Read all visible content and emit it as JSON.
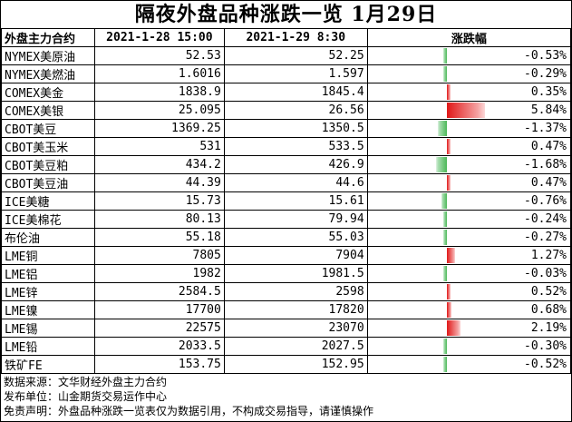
{
  "title": "隔夜外盘品种涨跌一览 1月29日",
  "headers": [
    "外盘主力合约",
    "2021-1-28 15:00",
    "2021-1-29 8:30",
    "涨跌幅"
  ],
  "rows": [
    {
      "name": "NYMEX美原油",
      "prev": "52.53",
      "curr": "52.25",
      "change": "-0.53%",
      "change_value": -0.53
    },
    {
      "name": "NYMEX美燃油",
      "prev": "1.6016",
      "curr": "1.597",
      "change": "-0.29%",
      "change_value": -0.29
    },
    {
      "name": "COMEX美金",
      "prev": "1838.9",
      "curr": "1845.4",
      "change": "0.35%",
      "change_value": 0.35
    },
    {
      "name": "COMEX美银",
      "prev": "25.095",
      "curr": "26.56",
      "change": "5.84%",
      "change_value": 5.84
    },
    {
      "name": "CBOT美豆",
      "prev": "1369.25",
      "curr": "1350.5",
      "change": "-1.37%",
      "change_value": -1.37
    },
    {
      "name": "CBOT美玉米",
      "prev": "531",
      "curr": "533.5",
      "change": "0.47%",
      "change_value": 0.47
    },
    {
      "name": "CBOT美豆粕",
      "prev": "434.2",
      "curr": "426.9",
      "change": "-1.68%",
      "change_value": -1.68
    },
    {
      "name": "CBOT美豆油",
      "prev": "44.39",
      "curr": "44.6",
      "change": "0.47%",
      "change_value": 0.47
    },
    {
      "name": "ICE美糖",
      "prev": "15.73",
      "curr": "15.61",
      "change": "-0.76%",
      "change_value": -0.76
    },
    {
      "name": "ICE美棉花",
      "prev": "80.13",
      "curr": "79.94",
      "change": "-0.24%",
      "change_value": -0.24
    },
    {
      "name": "布伦油",
      "prev": "55.18",
      "curr": "55.03",
      "change": "-0.27%",
      "change_value": -0.27
    },
    {
      "name": "LME铜",
      "prev": "7805",
      "curr": "7904",
      "change": "1.27%",
      "change_value": 1.27
    },
    {
      "name": "LME铝",
      "prev": "1982",
      "curr": "1981.5",
      "change": "-0.03%",
      "change_value": -0.03
    },
    {
      "name": "LME锌",
      "prev": "2584.5",
      "curr": "2598",
      "change": "0.52%",
      "change_value": 0.52
    },
    {
      "name": "LME镍",
      "prev": "17700",
      "curr": "17820",
      "change": "0.68%",
      "change_value": 0.68
    },
    {
      "name": "LME锡",
      "prev": "22575",
      "curr": "23070",
      "change": "2.19%",
      "change_value": 2.19
    },
    {
      "name": "LME铅",
      "prev": "2033.5",
      "curr": "2027.5",
      "change": "-0.30%",
      "change_value": -0.3
    },
    {
      "name": "铁矿FE",
      "prev": "153.75",
      "curr": "152.95",
      "change": "-0.52%",
      "change_value": -0.52
    }
  ],
  "footer": {
    "source": "数据来源：文华财经外盘主力合约",
    "publisher": "发布单位：山金期货交易运作中心",
    "disclaimer": "免责声明：外盘品种涨跌一览表仅为数据引用，不构成交易指导，请谨慎操作"
  },
  "colors": {
    "up": "#e01818",
    "down": "#4cb858"
  }
}
